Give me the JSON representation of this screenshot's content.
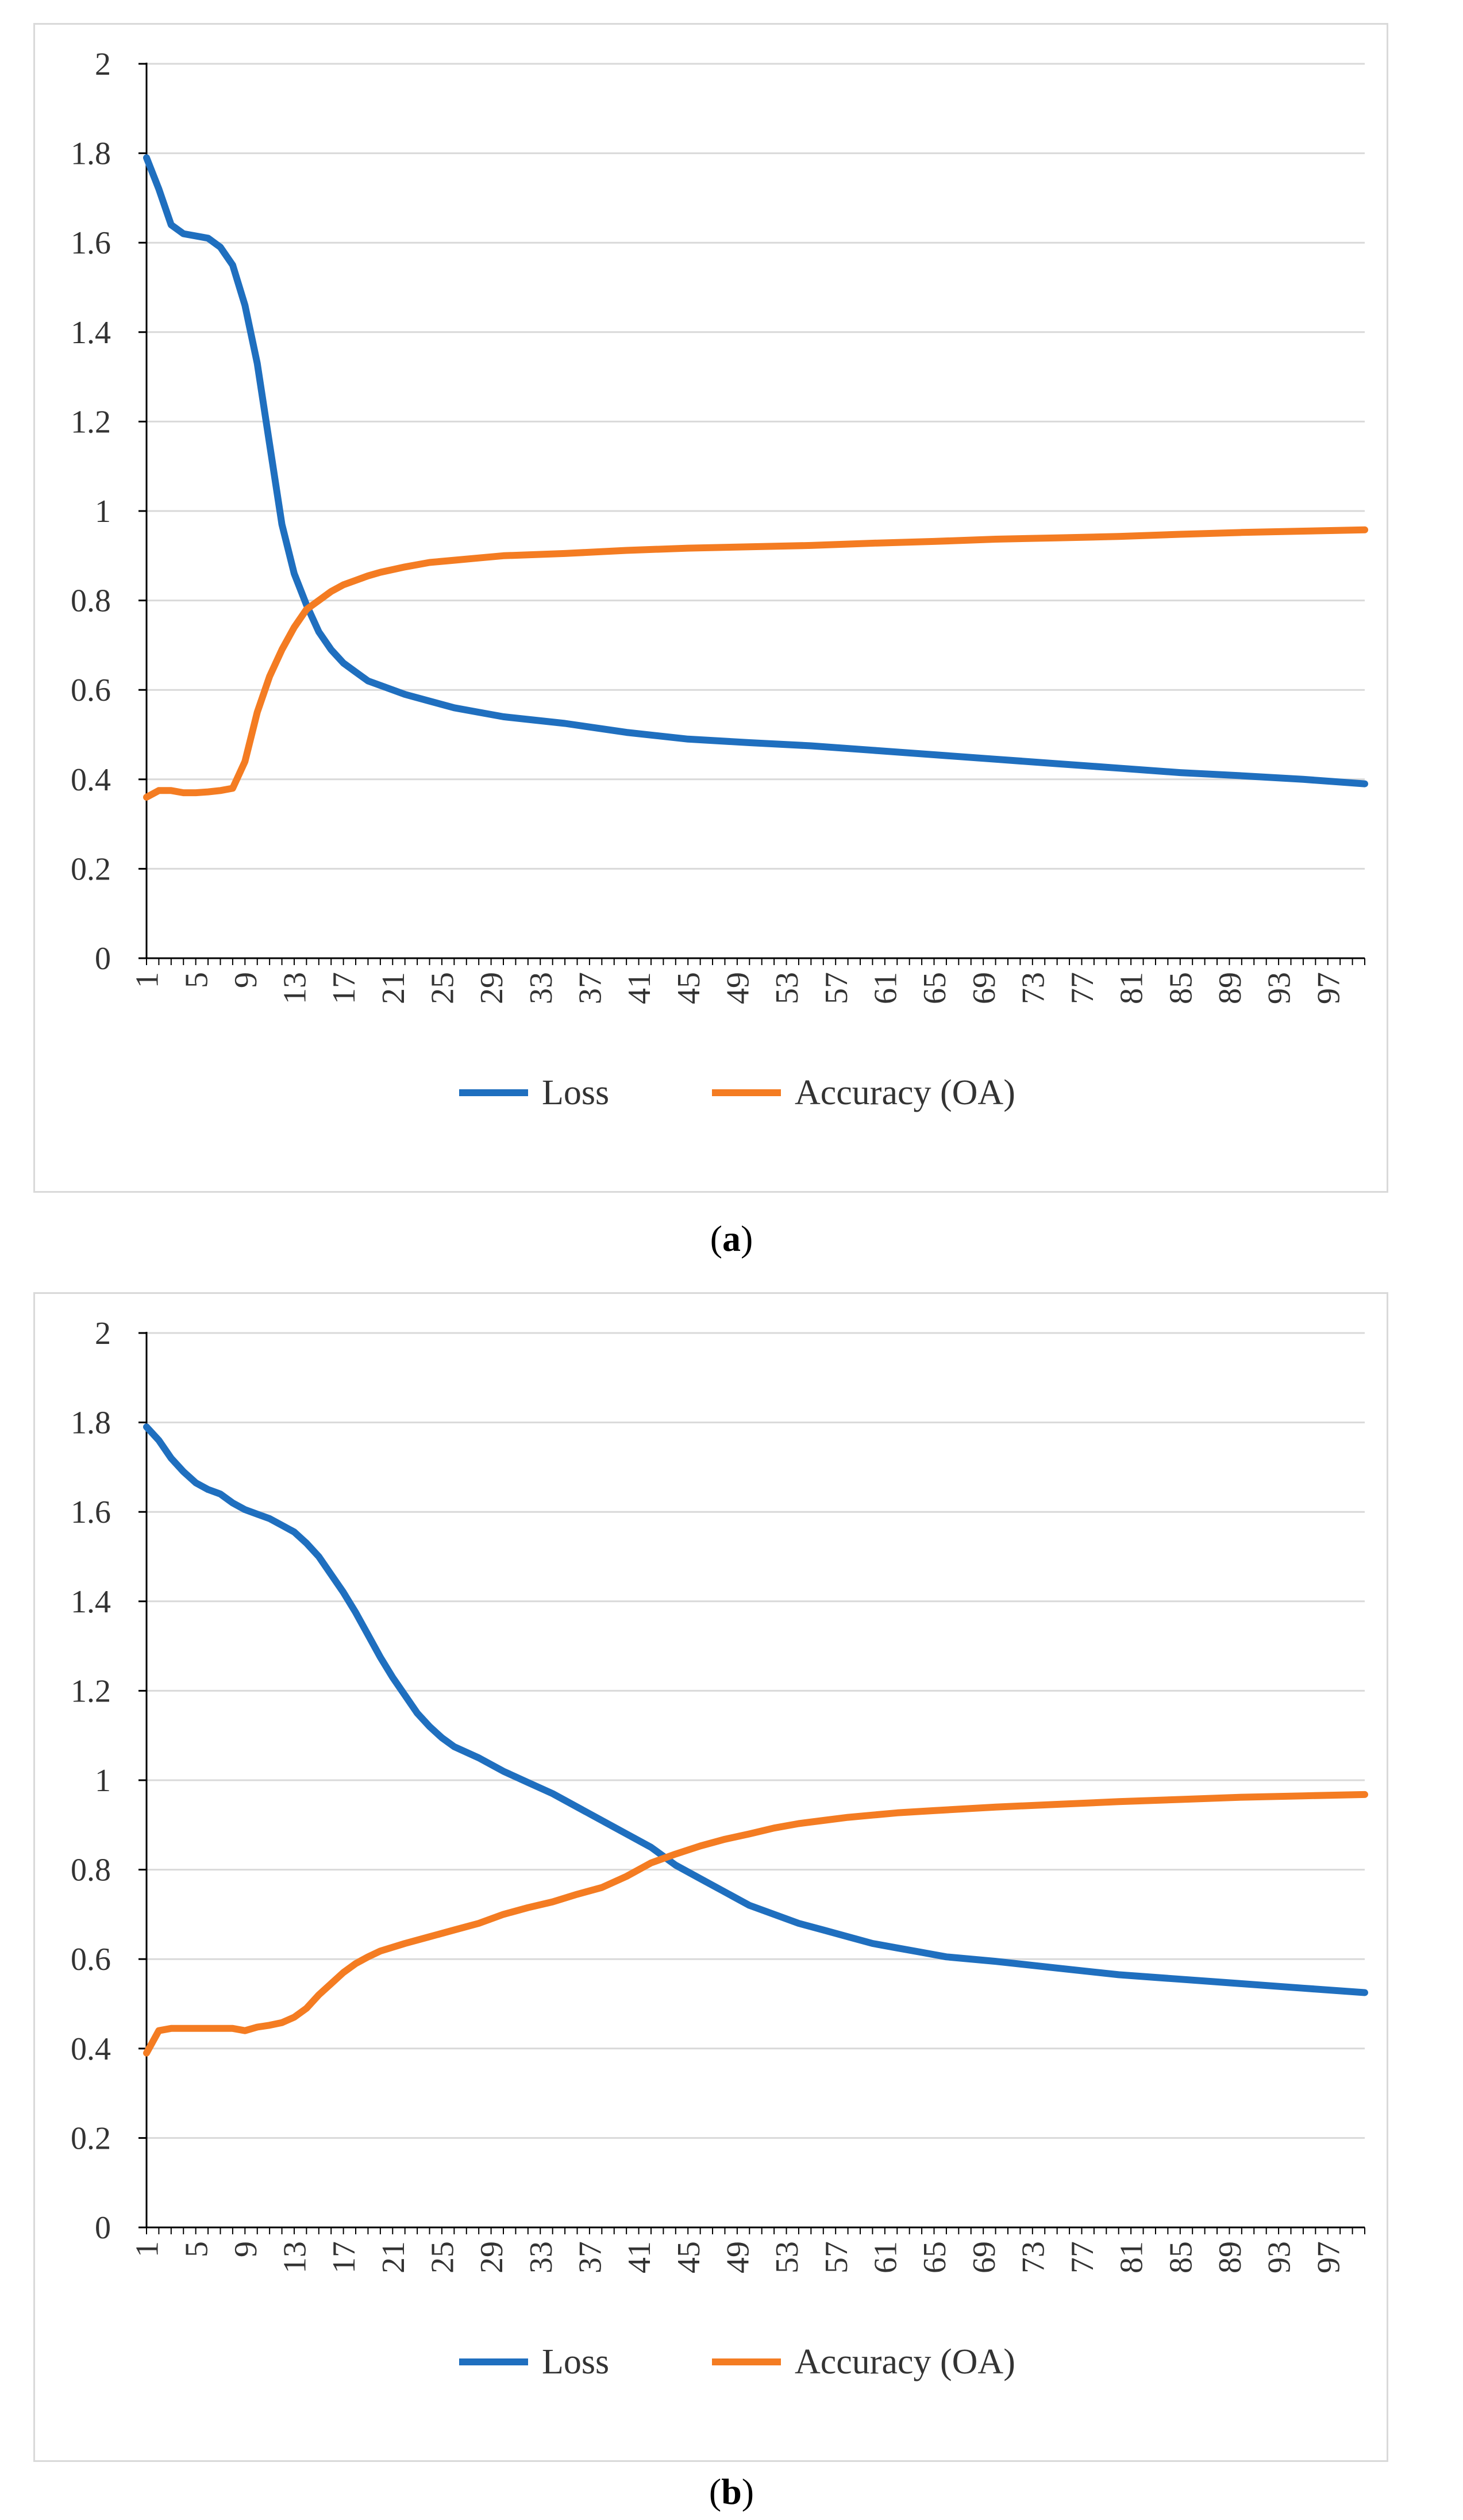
{
  "chart_data": [
    {
      "type": "line",
      "panel_label": "a",
      "ylim": [
        0,
        2
      ],
      "yticks": [
        "0",
        "0.2",
        "0.4",
        "0.6",
        "0.8",
        "1",
        "1.2",
        "1.4",
        "1.6",
        "1.8",
        "2"
      ],
      "x_range": [
        1,
        100
      ],
      "xticks": [
        "1",
        "5",
        "9",
        "13",
        "17",
        "21",
        "25",
        "29",
        "33",
        "37",
        "41",
        "45",
        "49",
        "53",
        "57",
        "61",
        "65",
        "69",
        "73",
        "77",
        "81",
        "85",
        "89",
        "93",
        "97"
      ],
      "grid": "horizontal",
      "legend": "bottom",
      "series": [
        {
          "name": "Loss",
          "color": "#1f6fbf",
          "points": [
            [
              1,
              1.79
            ],
            [
              2,
              1.72
            ],
            [
              3,
              1.64
            ],
            [
              4,
              1.62
            ],
            [
              5,
              1.615
            ],
            [
              6,
              1.61
            ],
            [
              7,
              1.59
            ],
            [
              8,
              1.55
            ],
            [
              9,
              1.46
            ],
            [
              10,
              1.33
            ],
            [
              11,
              1.15
            ],
            [
              12,
              0.97
            ],
            [
              13,
              0.86
            ],
            [
              14,
              0.79
            ],
            [
              15,
              0.73
            ],
            [
              16,
              0.69
            ],
            [
              17,
              0.66
            ],
            [
              18,
              0.64
            ],
            [
              19,
              0.62
            ],
            [
              20,
              0.61
            ],
            [
              22,
              0.59
            ],
            [
              24,
              0.575
            ],
            [
              26,
              0.56
            ],
            [
              28,
              0.55
            ],
            [
              30,
              0.54
            ],
            [
              35,
              0.525
            ],
            [
              40,
              0.505
            ],
            [
              45,
              0.49
            ],
            [
              50,
              0.482
            ],
            [
              55,
              0.475
            ],
            [
              60,
              0.465
            ],
            [
              65,
              0.455
            ],
            [
              70,
              0.445
            ],
            [
              75,
              0.435
            ],
            [
              80,
              0.425
            ],
            [
              85,
              0.415
            ],
            [
              90,
              0.408
            ],
            [
              95,
              0.4
            ],
            [
              100,
              0.39
            ]
          ]
        },
        {
          "name": "Accuracy (OA)",
          "color": "#f47c22",
          "points": [
            [
              1,
              0.36
            ],
            [
              2,
              0.375
            ],
            [
              3,
              0.375
            ],
            [
              4,
              0.37
            ],
            [
              5,
              0.37
            ],
            [
              6,
              0.372
            ],
            [
              7,
              0.375
            ],
            [
              8,
              0.38
            ],
            [
              9,
              0.44
            ],
            [
              10,
              0.55
            ],
            [
              11,
              0.63
            ],
            [
              12,
              0.69
            ],
            [
              13,
              0.74
            ],
            [
              14,
              0.78
            ],
            [
              15,
              0.8
            ],
            [
              16,
              0.82
            ],
            [
              17,
              0.835
            ],
            [
              18,
              0.845
            ],
            [
              19,
              0.855
            ],
            [
              20,
              0.863
            ],
            [
              22,
              0.875
            ],
            [
              24,
              0.885
            ],
            [
              26,
              0.89
            ],
            [
              28,
              0.895
            ],
            [
              30,
              0.9
            ],
            [
              35,
              0.905
            ],
            [
              40,
              0.912
            ],
            [
              45,
              0.917
            ],
            [
              50,
              0.92
            ],
            [
              55,
              0.923
            ],
            [
              60,
              0.928
            ],
            [
              65,
              0.932
            ],
            [
              70,
              0.937
            ],
            [
              75,
              0.94
            ],
            [
              80,
              0.943
            ],
            [
              85,
              0.948
            ],
            [
              90,
              0.952
            ],
            [
              95,
              0.955
            ],
            [
              100,
              0.958
            ]
          ]
        }
      ]
    },
    {
      "type": "line",
      "panel_label": "b",
      "ylim": [
        0,
        2
      ],
      "yticks": [
        "0",
        "0.2",
        "0.4",
        "0.6",
        "0.8",
        "1",
        "1.2",
        "1.4",
        "1.6",
        "1.8",
        "2"
      ],
      "x_range": [
        1,
        100
      ],
      "xticks": [
        "1",
        "5",
        "9",
        "13",
        "17",
        "21",
        "25",
        "29",
        "33",
        "37",
        "41",
        "45",
        "49",
        "53",
        "57",
        "61",
        "65",
        "69",
        "73",
        "77",
        "81",
        "85",
        "89",
        "93",
        "97"
      ],
      "grid": "horizontal",
      "legend": "bottom",
      "series": [
        {
          "name": "Loss",
          "color": "#1f6fbf",
          "points": [
            [
              1,
              1.79
            ],
            [
              2,
              1.76
            ],
            [
              3,
              1.72
            ],
            [
              4,
              1.69
            ],
            [
              5,
              1.665
            ],
            [
              6,
              1.65
            ],
            [
              7,
              1.64
            ],
            [
              8,
              1.62
            ],
            [
              9,
              1.605
            ],
            [
              10,
              1.595
            ],
            [
              11,
              1.585
            ],
            [
              12,
              1.57
            ],
            [
              13,
              1.555
            ],
            [
              14,
              1.53
            ],
            [
              15,
              1.5
            ],
            [
              16,
              1.46
            ],
            [
              17,
              1.42
            ],
            [
              18,
              1.375
            ],
            [
              19,
              1.325
            ],
            [
              20,
              1.275
            ],
            [
              21,
              1.23
            ],
            [
              22,
              1.19
            ],
            [
              23,
              1.15
            ],
            [
              24,
              1.12
            ],
            [
              25,
              1.095
            ],
            [
              26,
              1.075
            ],
            [
              28,
              1.05
            ],
            [
              30,
              1.02
            ],
            [
              32,
              0.995
            ],
            [
              34,
              0.97
            ],
            [
              36,
              0.94
            ],
            [
              38,
              0.91
            ],
            [
              40,
              0.88
            ],
            [
              42,
              0.85
            ],
            [
              44,
              0.81
            ],
            [
              46,
              0.78
            ],
            [
              48,
              0.75
            ],
            [
              50,
              0.72
            ],
            [
              52,
              0.7
            ],
            [
              54,
              0.68
            ],
            [
              56,
              0.665
            ],
            [
              58,
              0.65
            ],
            [
              60,
              0.635
            ],
            [
              62,
              0.625
            ],
            [
              64,
              0.615
            ],
            [
              66,
              0.605
            ],
            [
              70,
              0.595
            ],
            [
              75,
              0.58
            ],
            [
              80,
              0.565
            ],
            [
              85,
              0.555
            ],
            [
              90,
              0.545
            ],
            [
              95,
              0.535
            ],
            [
              100,
              0.525
            ]
          ]
        },
        {
          "name": "Accuracy (OA)",
          "color": "#f47c22",
          "points": [
            [
              1,
              0.39
            ],
            [
              2,
              0.44
            ],
            [
              3,
              0.445
            ],
            [
              4,
              0.445
            ],
            [
              5,
              0.445
            ],
            [
              6,
              0.445
            ],
            [
              7,
              0.445
            ],
            [
              8,
              0.445
            ],
            [
              9,
              0.44
            ],
            [
              10,
              0.448
            ],
            [
              11,
              0.452
            ],
            [
              12,
              0.458
            ],
            [
              13,
              0.47
            ],
            [
              14,
              0.49
            ],
            [
              15,
              0.52
            ],
            [
              16,
              0.545
            ],
            [
              17,
              0.57
            ],
            [
              18,
              0.59
            ],
            [
              19,
              0.605
            ],
            [
              20,
              0.618
            ],
            [
              22,
              0.635
            ],
            [
              24,
              0.65
            ],
            [
              26,
              0.665
            ],
            [
              28,
              0.68
            ],
            [
              30,
              0.7
            ],
            [
              32,
              0.715
            ],
            [
              34,
              0.728
            ],
            [
              36,
              0.745
            ],
            [
              38,
              0.76
            ],
            [
              40,
              0.785
            ],
            [
              42,
              0.815
            ],
            [
              44,
              0.835
            ],
            [
              46,
              0.853
            ],
            [
              48,
              0.868
            ],
            [
              50,
              0.88
            ],
            [
              52,
              0.893
            ],
            [
              54,
              0.903
            ],
            [
              56,
              0.91
            ],
            [
              58,
              0.917
            ],
            [
              60,
              0.922
            ],
            [
              62,
              0.927
            ],
            [
              65,
              0.932
            ],
            [
              70,
              0.94
            ],
            [
              75,
              0.946
            ],
            [
              80,
              0.952
            ],
            [
              85,
              0.957
            ],
            [
              90,
              0.962
            ],
            [
              95,
              0.965
            ],
            [
              100,
              0.968
            ]
          ]
        }
      ]
    }
  ]
}
